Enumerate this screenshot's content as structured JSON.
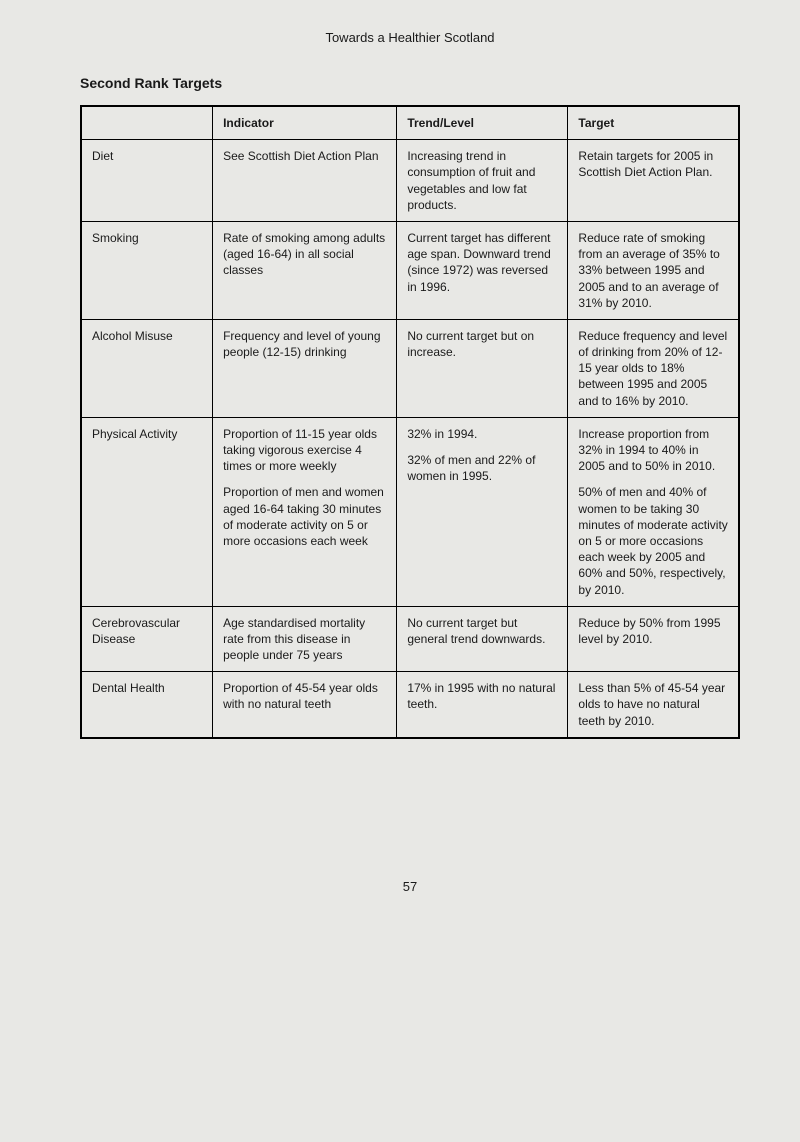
{
  "header": {
    "doc_title": "Towards a Healthier Scotland",
    "section_title": "Second Rank Targets",
    "page_number": "57"
  },
  "table": {
    "columns": [
      "",
      "Indicator",
      "Trend/Level",
      "Target"
    ],
    "rows": [
      {
        "category": "Diet",
        "indicator": [
          "See Scottish Diet Action Plan"
        ],
        "trend": [
          "Increasing trend in consumption of fruit and vegetables and low fat products."
        ],
        "target": [
          "Retain targets for 2005 in Scottish Diet Action Plan."
        ]
      },
      {
        "category": "Smoking",
        "indicator": [
          "Rate of smoking among adults (aged 16-64) in all social classes"
        ],
        "trend": [
          "Current target has different age span. Downward trend (since 1972) was reversed in 1996."
        ],
        "target": [
          "Reduce rate of smoking from an average of 35% to 33% between 1995 and 2005 and to an average of 31% by 2010."
        ]
      },
      {
        "category": "Alcohol Misuse",
        "indicator": [
          "Frequency and level of young people (12-15) drinking"
        ],
        "trend": [
          "No current target but on increase."
        ],
        "target": [
          "Reduce frequency and level of drinking from 20% of 12-15 year olds to 18% between 1995 and 2005 and to 16% by 2010."
        ]
      },
      {
        "category": "Physical Activity",
        "indicator": [
          "Proportion of 11-15 year olds taking vigorous exercise 4 times or more weekly",
          "Proportion of men and women aged 16-64 taking 30 minutes of moderate activity on 5 or more occasions each week"
        ],
        "trend": [
          "32% in 1994.",
          "32% of men and 22% of women in 1995."
        ],
        "target": [
          "Increase proportion from 32% in 1994 to 40% in 2005 and to 50% in 2010.",
          "50% of men and 40% of women to be taking 30 minutes of moderate activity on 5 or more occasions each week by 2005 and 60% and 50%, respectively, by 2010."
        ]
      },
      {
        "category": "Cerebrovascular Disease",
        "indicator": [
          "Age standardised mortality rate from this disease in people under 75 years"
        ],
        "trend": [
          "No current target but general trend downwards."
        ],
        "target": [
          "Reduce by 50% from 1995 level by 2010."
        ]
      },
      {
        "category": "Dental Health",
        "indicator": [
          "Proportion of 45-54 year olds with no natural teeth"
        ],
        "trend": [
          "17% in 1995 with no natural teeth."
        ],
        "target": [
          "Less than 5% of 45-54 year olds to have no natural teeth by 2010."
        ]
      }
    ]
  }
}
